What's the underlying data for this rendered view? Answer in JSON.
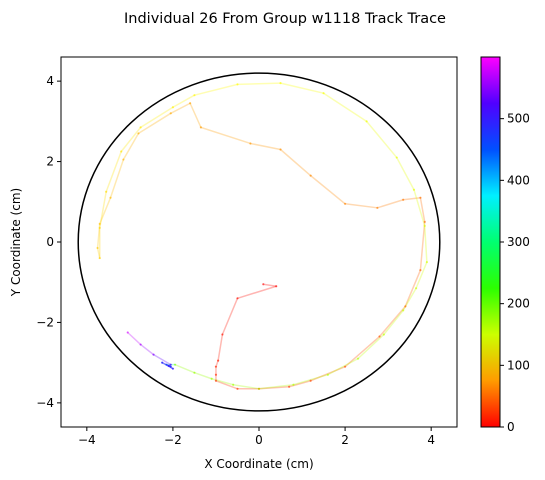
{
  "chart_data": {
    "type": "scatter",
    "title": "Individual 26 From Group w1118 Track Trace",
    "xlabel": "X Coordinate (cm)",
    "ylabel": "Y Coordinate (cm)",
    "xlim": [
      -4.6,
      4.6
    ],
    "ylim": [
      -4.6,
      4.6
    ],
    "xticks": [
      -4,
      -2,
      0,
      2,
      4
    ],
    "yticks": [
      -4,
      -2,
      0,
      2,
      4
    ],
    "grid": false,
    "arena_circle": {
      "center": [
        0,
        0
      ],
      "radius": 4.2,
      "color": "#000000"
    },
    "colorbar": {
      "colormap": "gist_rainbow",
      "range": [
        0,
        600
      ],
      "ticks": [
        0,
        100,
        200,
        300,
        400,
        500
      ]
    },
    "series": [
      {
        "points": [
          {
            "x": 0.1,
            "y": -1.05,
            "t": 0
          },
          {
            "x": 0.4,
            "y": -1.1,
            "t": 3
          },
          {
            "x": -0.5,
            "y": -1.4,
            "t": 6
          },
          {
            "x": -0.85,
            "y": -2.3,
            "t": 9
          },
          {
            "x": -0.95,
            "y": -2.95,
            "t": 12
          },
          {
            "x": -1.0,
            "y": -3.1,
            "t": 15
          },
          {
            "x": -1.0,
            "y": -3.3,
            "t": 18
          },
          {
            "x": -1.0,
            "y": -3.45,
            "t": 21
          },
          {
            "x": -0.5,
            "y": -3.65,
            "t": 24
          },
          {
            "x": 0.0,
            "y": -3.65,
            "t": 27
          },
          {
            "x": 0.7,
            "y": -3.6,
            "t": 30
          },
          {
            "x": 1.2,
            "y": -3.45,
            "t": 33
          },
          {
            "x": 2.0,
            "y": -3.1,
            "t": 36
          },
          {
            "x": 2.8,
            "y": -2.35,
            "t": 40
          },
          {
            "x": 3.4,
            "y": -1.6,
            "t": 44
          },
          {
            "x": 3.75,
            "y": -0.7,
            "t": 47
          },
          {
            "x": 3.85,
            "y": 0.5,
            "t": 50
          },
          {
            "x": 3.75,
            "y": 1.1,
            "t": 53
          },
          {
            "x": 3.35,
            "y": 1.05,
            "t": 56
          },
          {
            "x": 2.75,
            "y": 0.85,
            "t": 59
          },
          {
            "x": 2.0,
            "y": 0.95,
            "t": 62
          },
          {
            "x": 1.2,
            "y": 1.65,
            "t": 65
          },
          {
            "x": 0.5,
            "y": 2.3,
            "t": 68
          },
          {
            "x": -0.2,
            "y": 2.45,
            "t": 71
          },
          {
            "x": -1.35,
            "y": 2.85,
            "t": 74
          },
          {
            "x": -1.6,
            "y": 3.45,
            "t": 77
          },
          {
            "x": -2.05,
            "y": 3.2,
            "t": 80
          },
          {
            "x": -2.8,
            "y": 2.7,
            "t": 83
          },
          {
            "x": -3.15,
            "y": 2.05,
            "t": 86
          },
          {
            "x": -3.45,
            "y": 1.1,
            "t": 89
          },
          {
            "x": -3.7,
            "y": 0.45,
            "t": 92
          },
          {
            "x": -3.75,
            "y": -0.15,
            "t": 95
          },
          {
            "x": -3.7,
            "y": -0.4,
            "t": 98
          },
          {
            "x": -3.7,
            "y": 0.35,
            "t": 101
          },
          {
            "x": -3.55,
            "y": 1.25,
            "t": 104
          },
          {
            "x": -3.2,
            "y": 2.25,
            "t": 107
          },
          {
            "x": -2.75,
            "y": 2.85,
            "t": 110
          },
          {
            "x": -2.0,
            "y": 3.35,
            "t": 113
          },
          {
            "x": -1.5,
            "y": 3.65,
            "t": 116
          },
          {
            "x": -0.5,
            "y": 3.92,
            "t": 119
          },
          {
            "x": 0.5,
            "y": 3.95,
            "t": 122
          },
          {
            "x": 1.5,
            "y": 3.7,
            "t": 125
          },
          {
            "x": 2.5,
            "y": 3.0,
            "t": 128
          },
          {
            "x": 3.2,
            "y": 2.1,
            "t": 131
          },
          {
            "x": 3.6,
            "y": 1.3,
            "t": 134
          },
          {
            "x": 3.85,
            "y": 0.4,
            "t": 137
          },
          {
            "x": 3.9,
            "y": -0.5,
            "t": 140
          },
          {
            "x": 3.65,
            "y": -1.15,
            "t": 143
          },
          {
            "x": 3.35,
            "y": -1.7,
            "t": 146
          },
          {
            "x": 2.9,
            "y": -2.3,
            "t": 149
          },
          {
            "x": 2.3,
            "y": -2.9,
            "t": 152
          },
          {
            "x": 1.6,
            "y": -3.3,
            "t": 155
          },
          {
            "x": 0.8,
            "y": -3.55,
            "t": 158
          },
          {
            "x": 0.0,
            "y": -3.65,
            "t": 161
          },
          {
            "x": -0.6,
            "y": -3.55,
            "t": 164
          },
          {
            "x": -1.1,
            "y": -3.4,
            "t": 167
          },
          {
            "x": -1.5,
            "y": -3.25,
            "t": 170
          },
          {
            "x": -1.95,
            "y": -3.05,
            "t": 173
          },
          {
            "x": -2.15,
            "y": -3.05,
            "t": 460
          },
          {
            "x": -2.05,
            "y": -3.1,
            "t": 470
          },
          {
            "x": -2.25,
            "y": -3.0,
            "t": 480
          },
          {
            "x": -2.0,
            "y": -3.15,
            "t": 490
          },
          {
            "x": -2.1,
            "y": -3.08,
            "t": 500
          },
          {
            "x": -2.05,
            "y": -3.05,
            "t": 510
          },
          {
            "x": -2.45,
            "y": -2.8,
            "t": 540
          },
          {
            "x": -2.75,
            "y": -2.55,
            "t": 560
          },
          {
            "x": -3.05,
            "y": -2.25,
            "t": 580
          }
        ]
      }
    ]
  }
}
